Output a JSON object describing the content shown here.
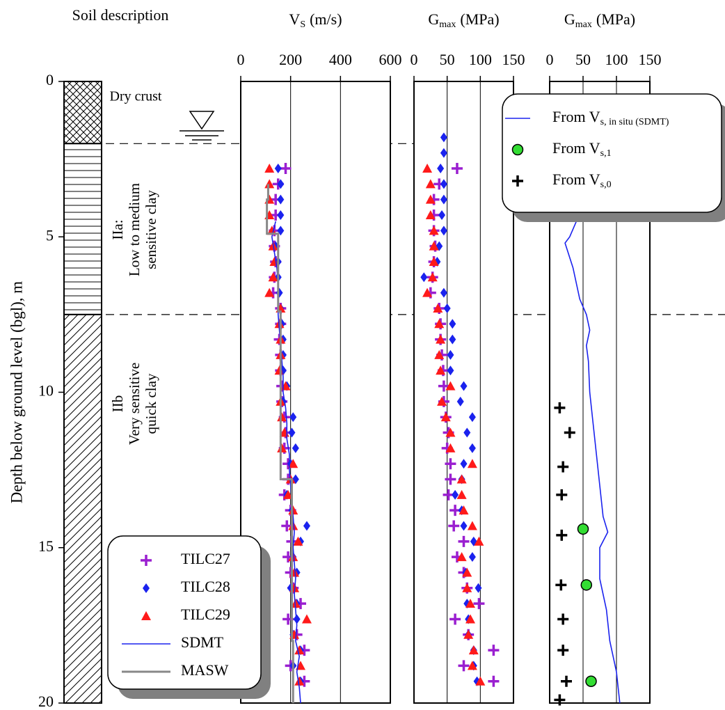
{
  "soil_column": {
    "title": "Soil description",
    "layers": [
      {
        "label": [
          "Dry crust"
        ],
        "top": 0,
        "bottom": 2
      },
      {
        "label": [
          "IIa:",
          "Low to medium",
          "sensitive clay"
        ],
        "top": 2,
        "bottom": 7.5
      },
      {
        "label": [
          "IIb",
          "Very sensitive",
          "quick clay"
        ],
        "top": 7.5,
        "bottom": 20
      }
    ]
  },
  "chart_data": [
    {
      "type": "scatter",
      "xlabel": {
        "main": "V",
        "sub": "S",
        "unit": "(m/s)"
      },
      "ylabel": "Depth below ground level (bgl), m",
      "xlim": [
        0,
        600
      ],
      "xticks": [
        0,
        200,
        400,
        600
      ],
      "ylim": [
        0,
        20
      ],
      "yticks": [
        0,
        5,
        10,
        15,
        20
      ],
      "legend": "lower left",
      "series": [
        {
          "name": "TILC27",
          "color": "#9a1fd0",
          "marker": "plus",
          "x": [
            180,
            150,
            140,
            140,
            135,
            135,
            140,
            135,
            130,
            160,
            160,
            155,
            160,
            160,
            165,
            165,
            175,
            180,
            175,
            190,
            190,
            175,
            200,
            185,
            205,
            190,
            200,
            210,
            240,
            190,
            225,
            255,
            200,
            255
          ],
          "y": [
            2.8,
            3.3,
            3.8,
            4.3,
            4.8,
            5.3,
            5.8,
            6.3,
            6.8,
            7.3,
            7.8,
            8.3,
            8.8,
            9.3,
            9.8,
            10.3,
            10.8,
            11.3,
            11.8,
            12.3,
            12.8,
            13.3,
            13.8,
            14.3,
            14.8,
            15.3,
            15.8,
            16.3,
            16.8,
            17.3,
            17.8,
            18.3,
            18.8,
            19.3
          ]
        },
        {
          "name": "TILC28",
          "color": "#1a22ee",
          "marker": "diamond",
          "x": [
            150,
            160,
            160,
            160,
            160,
            140,
            150,
            150,
            155,
            160,
            165,
            170,
            170,
            170,
            185,
            170,
            210,
            205,
            220,
            200,
            220,
            185,
            205,
            265,
            240,
            210,
            225,
            200,
            225,
            225,
            210,
            240,
            210,
            240
          ],
          "y": [
            2.8,
            3.3,
            3.8,
            4.3,
            4.8,
            5.3,
            5.8,
            6.3,
            6.8,
            7.3,
            7.8,
            8.3,
            8.8,
            9.3,
            9.8,
            10.3,
            10.8,
            11.3,
            11.8,
            12.3,
            12.8,
            13.3,
            13.8,
            14.3,
            14.8,
            15.3,
            15.8,
            16.3,
            16.8,
            17.3,
            17.8,
            18.3,
            18.8,
            19.3
          ]
        },
        {
          "name": "TILC29",
          "color": "#ff1a1a",
          "marker": "triangle",
          "x": [
            115,
            115,
            115,
            115,
            125,
            130,
            135,
            130,
            115,
            160,
            155,
            160,
            160,
            155,
            180,
            160,
            165,
            175,
            165,
            210,
            200,
            190,
            210,
            210,
            230,
            210,
            215,
            215,
            220,
            265,
            215,
            235,
            240,
            235
          ],
          "y": [
            2.8,
            3.3,
            3.8,
            4.3,
            4.8,
            5.3,
            5.8,
            6.3,
            6.8,
            7.3,
            7.8,
            8.3,
            8.8,
            9.3,
            9.8,
            10.3,
            10.8,
            11.3,
            11.8,
            12.3,
            12.8,
            13.3,
            13.8,
            14.3,
            14.8,
            15.3,
            15.8,
            16.3,
            16.8,
            17.3,
            17.8,
            18.3,
            18.8,
            19.3
          ]
        },
        {
          "name": "SDMT",
          "color": "#1a22ee",
          "marker": "line",
          "x": [
            140,
            125,
            135,
            145,
            150,
            150,
            150,
            155,
            160,
            165,
            170,
            170,
            180,
            185,
            185,
            195,
            195,
            200,
            205,
            210,
            215,
            210,
            215,
            220,
            215,
            220,
            225,
            220,
            235,
            225,
            235,
            240
          ],
          "y": [
            4.5,
            5,
            5.5,
            6,
            6.5,
            7,
            7.5,
            8,
            8.5,
            9,
            9.5,
            10,
            10.5,
            11,
            11.5,
            12,
            12.5,
            13,
            13.5,
            14,
            14.5,
            15,
            15.5,
            16,
            16.5,
            17,
            17.5,
            18,
            18.5,
            19,
            19.5,
            20
          ]
        },
        {
          "name": "MASW",
          "color": "#888888",
          "marker": "line",
          "x": [
            110,
            110,
            105,
            105,
            150,
            150,
            160,
            160,
            205,
            205,
            210,
            210
          ],
          "y": [
            3.3,
            3.8,
            3.8,
            4.9,
            4.9,
            7.4,
            7.4,
            12.8,
            12.8,
            18,
            18,
            20
          ]
        }
      ]
    },
    {
      "type": "scatter",
      "xlabel": {
        "main": "G",
        "sub": "max",
        "unit": "(MPa)"
      },
      "xlim": [
        0,
        150
      ],
      "xticks": [
        0,
        50,
        100,
        150
      ],
      "ylim": [
        0,
        20
      ],
      "series": [
        {
          "color": "#9a1fd0",
          "marker": "plus",
          "x": [
            65,
            38,
            30,
            30,
            30,
            32,
            30,
            28,
            25,
            38,
            40,
            40,
            42,
            44,
            45,
            45,
            48,
            52,
            50,
            55,
            55,
            52,
            62,
            60,
            75,
            65,
            75,
            80,
            98,
            62,
            82,
            120,
            75,
            120
          ],
          "y": [
            2.8,
            3.3,
            3.8,
            4.3,
            4.8,
            5.3,
            5.8,
            6.3,
            6.8,
            7.3,
            7.8,
            8.3,
            8.8,
            9.3,
            9.8,
            10.3,
            10.8,
            11.3,
            11.8,
            12.3,
            12.8,
            13.3,
            13.8,
            14.3,
            14.8,
            15.3,
            15.8,
            16.3,
            16.8,
            17.3,
            17.8,
            18.3,
            18.8,
            19.3
          ]
        },
        {
          "color": "#1a22ee",
          "marker": "diamond",
          "x": [
            45,
            45,
            40,
            45,
            45,
            42,
            45,
            38,
            35,
            15,
            45,
            50,
            58,
            58,
            55,
            55,
            75,
            70,
            88,
            80,
            88,
            75,
            72,
            62,
            72,
            75,
            90,
            88,
            78,
            97,
            80,
            82,
            82,
            90,
            90,
            95
          ],
          "y": [
            1.8,
            2.3,
            2.8,
            3.3,
            3.8,
            4.3,
            4.8,
            5.3,
            5.8,
            6.3,
            6.8,
            7.3,
            7.8,
            8.3,
            8.8,
            9.3,
            9.8,
            10.3,
            10.8,
            11.3,
            11.8,
            12.3,
            12.8,
            13.3,
            13.8,
            14.3,
            14.8,
            15.3,
            15.8,
            16.3,
            16.8,
            17.3,
            17.8,
            18.3,
            18.8,
            19.3
          ]
        },
        {
          "color": "#ff1a1a",
          "marker": "triangle",
          "x": [
            20,
            25,
            25,
            25,
            30,
            30,
            30,
            28,
            20,
            36,
            38,
            40,
            38,
            40,
            55,
            42,
            48,
            55,
            55,
            88,
            72,
            72,
            75,
            88,
            98,
            72,
            80,
            80,
            85,
            85,
            82,
            90,
            88,
            100
          ],
          "y": [
            2.8,
            3.3,
            3.8,
            4.3,
            4.8,
            5.3,
            5.8,
            6.3,
            6.8,
            7.3,
            7.8,
            8.3,
            8.8,
            9.3,
            9.8,
            10.3,
            10.8,
            11.3,
            11.8,
            12.3,
            12.8,
            13.3,
            13.8,
            14.3,
            14.8,
            15.3,
            15.8,
            16.3,
            16.8,
            17.3,
            17.8,
            18.3,
            18.8,
            19.3
          ]
        }
      ]
    },
    {
      "type": "scatter",
      "xlabel": {
        "main": "G",
        "sub": "max",
        "unit": "(MPa)"
      },
      "xlim": [
        0,
        150
      ],
      "xticks": [
        0,
        50,
        100,
        150
      ],
      "ylim": [
        0,
        20
      ],
      "legend": "upper right",
      "series": [
        {
          "name": "From V",
          "name_sub": "s, in situ (SDMT)",
          "color": "#1a22ee",
          "marker": "line",
          "x": [
            40,
            30,
            23,
            35,
            45,
            55,
            60,
            55,
            58,
            60,
            65,
            70,
            75,
            80,
            87,
            75,
            75,
            85,
            90,
            100,
            105
          ],
          "y": [
            4.5,
            5,
            5.2,
            6,
            7,
            7.5,
            8,
            8.5,
            9,
            10,
            11,
            12,
            13,
            14,
            14.5,
            15,
            16,
            17,
            18,
            19,
            20
          ]
        },
        {
          "name": "From V",
          "name_sub": "s,1",
          "color": "#33dd33",
          "marker": "circle",
          "x": [
            50,
            55,
            62
          ],
          "y": [
            14.4,
            16.2,
            19.3
          ]
        },
        {
          "name": "From V",
          "name_sub": "s,0",
          "color": "#000000",
          "marker": "plus",
          "x": [
            15,
            30,
            20,
            18,
            18,
            17,
            20,
            20,
            25,
            15
          ],
          "y": [
            10.5,
            11.3,
            12.4,
            13.3,
            14.6,
            16.2,
            17.3,
            18.3,
            19.3,
            19.9
          ]
        }
      ]
    }
  ]
}
